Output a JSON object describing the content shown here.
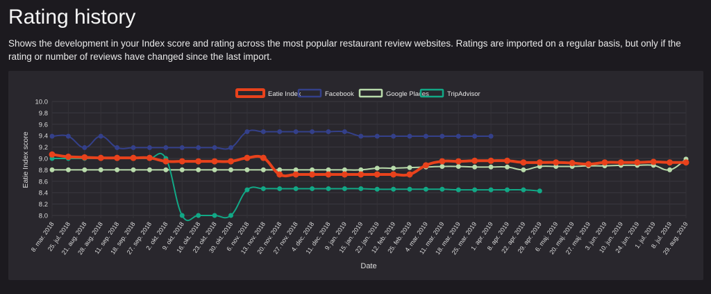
{
  "page": {
    "title": "Rating history",
    "description": "Shows the development in your Index score and rating across the most popular restaurant review websites. Ratings are imported on a regular basis, but only if the rating or number of reviews have changed since the last import."
  },
  "chart_data": {
    "type": "line",
    "xlabel": "Date",
    "ylabel": "Eatie Index score",
    "ylim": [
      8.0,
      10.0
    ],
    "yticks": [
      "8.0",
      "8.2",
      "8.4",
      "8.6",
      "8.8",
      "9.0",
      "9.2",
      "9.4",
      "9.6",
      "9.8",
      "10.0"
    ],
    "grid": true,
    "legend_position": "top",
    "categories": [
      "8. mar. 2018",
      "25. jul. 2018",
      "21. aug. 2018",
      "28. aug. 2018",
      "11. sep. 2018",
      "18. sep. 2018",
      "27. sep. 2018",
      "2. okt. 2018",
      "9. okt. 2018",
      "16. okt. 2018",
      "23. okt. 2018",
      "30. okt. 2018",
      "6. nov. 2018",
      "13. nov. 2018",
      "20. nov. 2018",
      "27. nov. 2018",
      "4. dec. 2018",
      "11. dec. 2018",
      "9. jan. 2019",
      "15. jan. 2019",
      "22. jan. 2019",
      "12. feb. 2019",
      "25. feb. 2019",
      "4. mar. 2019",
      "11. mar. 2019",
      "18. mar. 2019",
      "25. mar. 2019",
      "1. apr. 2019",
      "8. apr. 2019",
      "22. apr. 2019",
      "29. apr. 2019",
      "6. maj. 2019",
      "20. maj. 2019",
      "27. maj. 2019",
      "3. jun. 2019",
      "10. jun. 2019",
      "24. jun. 2019",
      "1. jul. 2019",
      "8. jul. 2019",
      "29. aug. 2019"
    ],
    "series": [
      {
        "name": "Eatie Index",
        "color": "#e8421c",
        "emphasis": true,
        "values": [
          9.07,
          9.03,
          9.02,
          9.01,
          9.01,
          9.01,
          9.01,
          8.95,
          8.95,
          8.95,
          8.95,
          8.95,
          9.01,
          9.01,
          8.72,
          8.72,
          8.72,
          8.72,
          8.72,
          8.72,
          8.72,
          8.72,
          8.72,
          8.88,
          8.95,
          8.95,
          8.96,
          8.96,
          8.96,
          8.93,
          8.93,
          8.93,
          8.92,
          8.9,
          8.93,
          8.93,
          8.93,
          8.94,
          8.93,
          8.93
        ]
      },
      {
        "name": "Facebook",
        "color": "#34408a",
        "emphasis": false,
        "values": [
          9.39,
          9.39,
          9.19,
          9.39,
          9.19,
          9.19,
          9.19,
          9.19,
          9.19,
          9.19,
          9.19,
          9.19,
          9.47,
          9.47,
          9.47,
          9.47,
          9.47,
          9.47,
          9.47,
          9.39,
          9.39,
          9.39,
          9.39,
          9.39,
          9.39,
          9.39,
          9.39,
          9.39,
          null,
          null,
          null,
          null,
          null,
          null,
          null,
          null,
          null,
          null,
          null,
          null
        ]
      },
      {
        "name": "Google Places",
        "color": "#b9dbab",
        "emphasis": false,
        "values": [
          8.8,
          8.8,
          8.8,
          8.8,
          8.8,
          8.8,
          8.8,
          8.8,
          8.8,
          8.8,
          8.8,
          8.8,
          8.8,
          8.8,
          8.8,
          8.8,
          8.8,
          8.8,
          8.8,
          8.8,
          8.83,
          8.83,
          8.84,
          8.85,
          8.86,
          8.86,
          8.85,
          8.85,
          8.85,
          8.8,
          8.86,
          8.86,
          8.86,
          8.87,
          8.87,
          8.88,
          8.88,
          8.88,
          8.8,
          8.99
        ]
      },
      {
        "name": "TripAdvisor",
        "color": "#12a886",
        "emphasis": false,
        "values": [
          9.0,
          9.0,
          9.0,
          9.0,
          9.0,
          9.0,
          9.0,
          9.0,
          8.0,
          8.0,
          8.0,
          8.0,
          8.45,
          8.47,
          8.47,
          8.47,
          8.47,
          8.47,
          8.47,
          8.47,
          8.46,
          8.46,
          8.46,
          8.46,
          8.46,
          8.45,
          8.45,
          8.45,
          8.45,
          8.45,
          8.43,
          null,
          null,
          null,
          null,
          null,
          null,
          null,
          null,
          null
        ]
      }
    ]
  }
}
